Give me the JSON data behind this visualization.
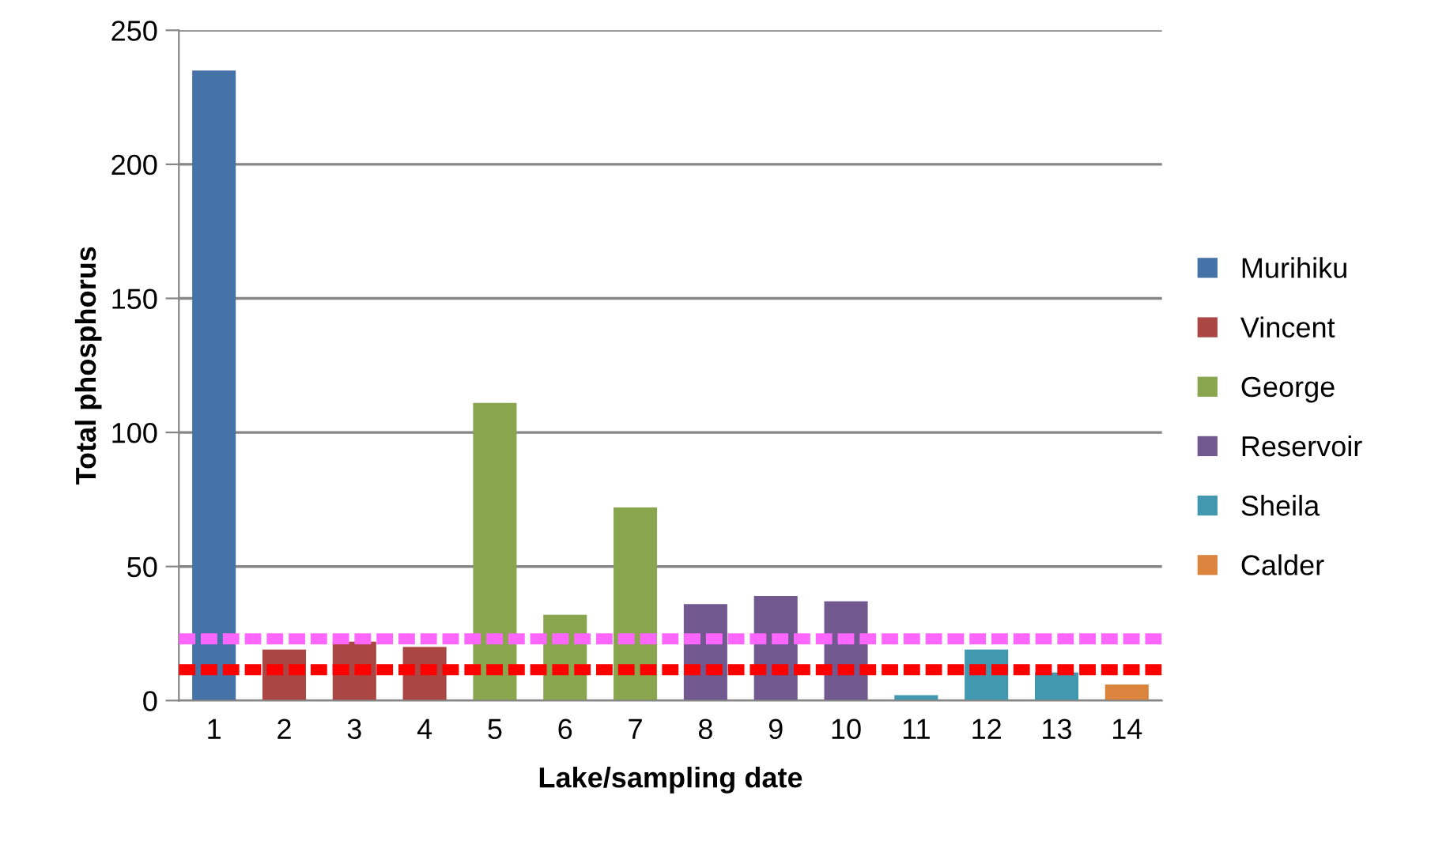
{
  "chart_data": {
    "type": "bar",
    "xlabel": "Lake/sampling date",
    "ylabel": "Total phosphorus",
    "categories": [
      "1",
      "2",
      "3",
      "4",
      "5",
      "6",
      "7",
      "8",
      "9",
      "10",
      "11",
      "12",
      "13",
      "14"
    ],
    "series": [
      {
        "name": "Murihiku",
        "color": "#4572a7",
        "values": [
          235,
          null,
          null,
          null,
          null,
          null,
          null,
          null,
          null,
          null,
          null,
          null,
          null,
          null
        ]
      },
      {
        "name": "Vincent",
        "color": "#aa4643",
        "values": [
          null,
          19,
          22,
          20,
          null,
          null,
          null,
          null,
          null,
          null,
          null,
          null,
          null,
          null
        ]
      },
      {
        "name": "George",
        "color": "#89a54e",
        "values": [
          null,
          null,
          null,
          null,
          111,
          32,
          72,
          null,
          null,
          null,
          null,
          null,
          null,
          null
        ]
      },
      {
        "name": "Reservoir",
        "color": "#71588f",
        "values": [
          null,
          null,
          null,
          null,
          null,
          null,
          null,
          36,
          39,
          37,
          null,
          null,
          null,
          null
        ]
      },
      {
        "name": "Sheila",
        "color": "#4198af",
        "values": [
          null,
          null,
          null,
          null,
          null,
          null,
          null,
          null,
          null,
          null,
          2,
          19,
          10.5,
          null
        ]
      },
      {
        "name": "Calder",
        "color": "#db843d",
        "values": [
          null,
          null,
          null,
          null,
          null,
          null,
          null,
          null,
          null,
          null,
          null,
          null,
          null,
          6
        ]
      }
    ],
    "ref_lines": [
      {
        "axis": "y",
        "value": 23,
        "color": "#ff66ff",
        "line_style": "dashed"
      },
      {
        "axis": "y",
        "value": 11.5,
        "color": "#ff0000",
        "line_style": "dashed"
      }
    ],
    "ylim": [
      0,
      250
    ],
    "yticks": [
      0,
      50,
      100,
      150,
      200,
      250
    ],
    "grid": "y",
    "legend": "right"
  }
}
